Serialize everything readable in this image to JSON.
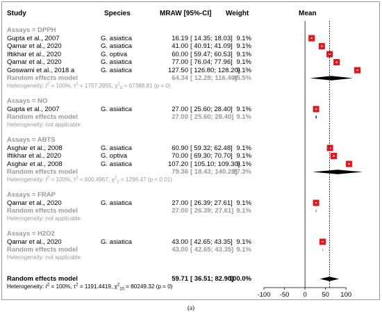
{
  "headers": {
    "study": "Study",
    "species": "Species",
    "mraw": "MRAW [95%-CI]",
    "weight": "Weight",
    "mean": "Mean"
  },
  "groups": [
    {
      "label": "Assays = DPPH",
      "studies": [
        {
          "study": "Gupta et al., 2007",
          "species": "G. asiatica",
          "est": "16.19",
          "ci": "[ 14.35; 18.03]",
          "weight": "9.1%"
        },
        {
          "study": "Qamar et al., 2020",
          "species": "G. asiatica",
          "est": "41.00",
          "ci": "[ 40.91; 41.09]",
          "weight": "9.1%"
        },
        {
          "study": "Iftikhar et al., 2020",
          "species": "G. optiva",
          "est": "60.00",
          "ci": "[ 59.47; 60.53]",
          "weight": "9.1%"
        },
        {
          "study": "Qamar et al., 2020",
          "species": "G. asiatica",
          "est": "77.00",
          "ci": "[ 76.04; 77.96]",
          "weight": "9.1%"
        },
        {
          "study": "Goswami et al., 2018 a",
          "species": "G. asiatica",
          "est": "127.50",
          "ci": "[ 126.80; 128.20]",
          "weight": "9.1%"
        }
      ],
      "re_label": "Random effects model",
      "re_est": "64.34",
      "re_ci": "[ 12.28; 116.40]",
      "re_weight": "45.5%",
      "het_pre": "Heterogeneity: ",
      "het_i": "I",
      "het_i2": "2",
      "het_rest1": " = 100%, τ",
      "het_t2": "2",
      "het_rest2": " = 1757.3955, χ",
      "het_c2": "2",
      "het_df": "4",
      "het_rest3": " = 67388.81 (p = 0)"
    },
    {
      "label": "Assays = NO",
      "studies": [
        {
          "study": "Gupta et al., 2007",
          "species": "G. asiatica",
          "est": "27.00",
          "ci": "[ 25.60; 28.40]",
          "weight": "9.1%"
        }
      ],
      "re_label": "Random effects model",
      "re_est": "27.00",
      "re_ci": "[ 25.60; 28.40]",
      "re_weight": "9.1%",
      "het_text": "Heterogeneity: not applicable"
    },
    {
      "label": "Assays = ABTS",
      "studies": [
        {
          "study": "Asghar et al., 2008",
          "species": "G. asiatica",
          "est": "60.90",
          "ci": "[ 59.32; 62.48]",
          "weight": "9.1%"
        },
        {
          "study": "Iftikhar et al., 2020",
          "species": "G. optiva",
          "est": "70.00",
          "ci": "[ 69.30; 70.70]",
          "weight": "9.1%"
        },
        {
          "study": "Asghar et al., 2008",
          "species": "G. asiatica",
          "est": "107.20",
          "ci": "[ 105.10; 109.30]",
          "weight": "9.1%"
        }
      ],
      "re_label": "Random effects model",
      "re_est": "79.36",
      "re_ci": "[ 18.43; 140.28]",
      "re_weight": "27.3%",
      "het_pre": "Heterogeneity: ",
      "het_i": "I",
      "het_i2": "2",
      "het_rest1": " = 100%, τ",
      "het_t2": "2",
      "het_rest2": " = 600.4967, χ",
      "het_c2": "2",
      "het_df": "2",
      "het_rest3": " = 1296.47 (p < 0.01)"
    },
    {
      "label": "Assays = FRAP",
      "studies": [
        {
          "study": "Qamar et al., 2020",
          "species": "G. asiatica",
          "est": "27.00",
          "ci": "[ 26.39; 27.61]",
          "weight": "9.1%"
        }
      ],
      "re_label": "Random effects model",
      "re_est": "27.00",
      "re_ci": "[ 26.39; 27.61]",
      "re_weight": "9.1%",
      "het_text": "Heterogeneity: not applicable"
    },
    {
      "label": "Assays = H2O2",
      "studies": [
        {
          "study": "Qamar et al., 2020",
          "species": "G. asiatica",
          "est": "43.00",
          "ci": "[ 42.65; 43.35]",
          "weight": "9.1%"
        }
      ],
      "re_label": "Random effects model",
      "re_est": "43.00",
      "re_ci": "[ 42.65; 43.35]",
      "re_weight": "9.1%",
      "het_text": "Heterogeneity: not applicable"
    }
  ],
  "overall": {
    "label": "Random effects model",
    "est": "59.71",
    "ci": "[ 36.51; 82.90]",
    "weight": "100.0%",
    "het_pre": "Heterogeneity: ",
    "het_i": "I",
    "het_i2": "2",
    "het_rest1": " = 100%, τ",
    "het_t2": "2",
    "het_rest2": " = 1191.4419, χ",
    "het_c2": "2",
    "het_df": "10",
    "het_rest3": " = 80249.32 (p = 0)"
  },
  "caption": "(a)",
  "chart_data": {
    "type": "forest",
    "xlim": [
      -100,
      125
    ],
    "ticks": [
      -100,
      -50,
      0,
      50,
      100
    ],
    "tick_labels": [
      "-100",
      "-50",
      "0",
      "50",
      "100"
    ],
    "reference_line": 59.71,
    "colors": {
      "study_marker": "#e8141c",
      "summary": "#000000",
      "reference": "#000000"
    },
    "studies": [
      {
        "group": "DPPH",
        "est": 16.19,
        "lo": 14.35,
        "hi": 18.03
      },
      {
        "group": "DPPH",
        "est": 41.0,
        "lo": 40.91,
        "hi": 41.09
      },
      {
        "group": "DPPH",
        "est": 60.0,
        "lo": 59.47,
        "hi": 60.53
      },
      {
        "group": "DPPH",
        "est": 77.0,
        "lo": 76.04,
        "hi": 77.96
      },
      {
        "group": "DPPH",
        "est": 127.5,
        "lo": 126.8,
        "hi": 128.2
      },
      {
        "group": "NO",
        "est": 27.0,
        "lo": 25.6,
        "hi": 28.4
      },
      {
        "group": "ABTS",
        "est": 60.9,
        "lo": 59.32,
        "hi": 62.48
      },
      {
        "group": "ABTS",
        "est": 70.0,
        "lo": 69.3,
        "hi": 70.7
      },
      {
        "group": "ABTS",
        "est": 107.2,
        "lo": 105.1,
        "hi": 109.3
      },
      {
        "group": "FRAP",
        "est": 27.0,
        "lo": 26.39,
        "hi": 27.61
      },
      {
        "group": "H2O2",
        "est": 43.0,
        "lo": 42.65,
        "hi": 43.35
      }
    ],
    "summaries": [
      {
        "group": "DPPH",
        "est": 64.34,
        "lo": 12.28,
        "hi": 116.4
      },
      {
        "group": "NO",
        "est": 27.0,
        "lo": 25.6,
        "hi": 28.4
      },
      {
        "group": "ABTS",
        "est": 79.36,
        "lo": 18.43,
        "hi": 140.28
      },
      {
        "group": "FRAP",
        "est": 27.0,
        "lo": 26.39,
        "hi": 27.61
      },
      {
        "group": "H2O2",
        "est": 43.0,
        "lo": 42.65,
        "hi": 43.35
      },
      {
        "group": "overall",
        "est": 59.71,
        "lo": 36.51,
        "hi": 82.9
      }
    ]
  }
}
